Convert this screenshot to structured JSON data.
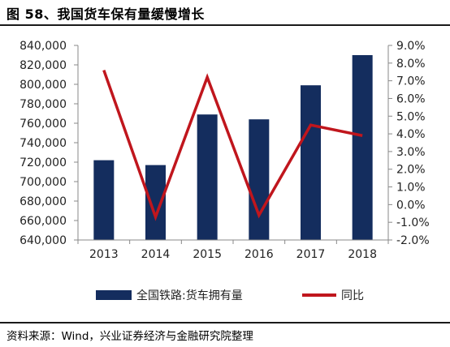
{
  "title": "图 58、我国货车保有量缓慢增长",
  "source": "资料来源：Wind，兴业证券经济与金融研究院整理",
  "chart_data": {
    "type": "bar+line",
    "categories": [
      "2013",
      "2014",
      "2015",
      "2016",
      "2017",
      "2018"
    ],
    "series": [
      {
        "name": "全国铁路:货车拥有量",
        "type": "bar",
        "axis": "left",
        "color": "#142d5e",
        "values": [
          722000,
          717000,
          769000,
          764000,
          799000,
          830000
        ]
      },
      {
        "name": "同比",
        "type": "line",
        "axis": "right",
        "color": "#c0161d",
        "values": [
          7.6,
          -0.7,
          7.2,
          -0.6,
          4.5,
          3.9
        ]
      }
    ],
    "left_axis": {
      "ylim": [
        640000,
        840000
      ],
      "ticks": [
        "640,000",
        "660,000",
        "680,000",
        "700,000",
        "720,000",
        "740,000",
        "760,000",
        "780,000",
        "800,000",
        "820,000",
        "840,000"
      ]
    },
    "right_axis": {
      "ylim": [
        -2.0,
        9.0
      ],
      "ticks": [
        "-2.0%",
        "-1.0%",
        "0.0%",
        "1.0%",
        "2.0%",
        "3.0%",
        "4.0%",
        "5.0%",
        "6.0%",
        "7.0%",
        "8.0%",
        "9.0%"
      ]
    },
    "grid": false,
    "legend_position": "bottom"
  }
}
